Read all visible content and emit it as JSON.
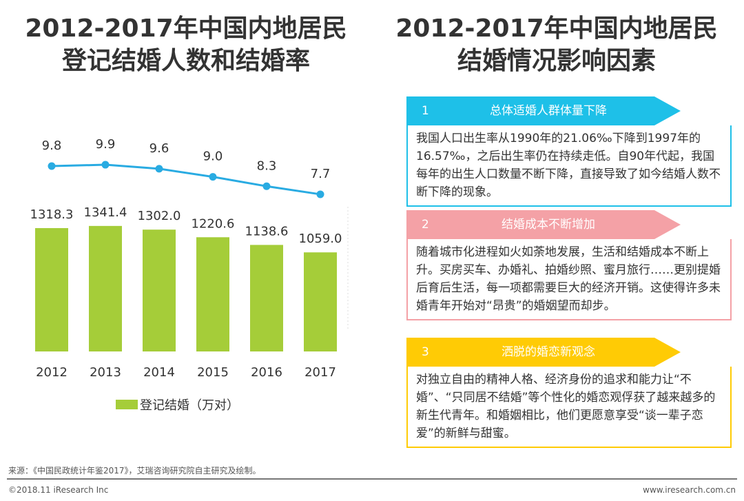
{
  "left_title": [
    "2012-2017年中国内地居民",
    "登记结婚人数和结婚率"
  ],
  "right_title": [
    "2012-2017年中国内地居民",
    "结婚情况影响因素"
  ],
  "chart_data": {
    "type": "bar+line",
    "categories": [
      "2012",
      "2013",
      "2014",
      "2015",
      "2016",
      "2017"
    ],
    "series": [
      {
        "name": "登记结婚（万对）",
        "type": "bar",
        "values": [
          1318.3,
          1341.4,
          1302.0,
          1220.6,
          1138.6,
          1059.0
        ],
        "color": "#a5cd39"
      },
      {
        "name": "结婚率",
        "type": "line",
        "values": [
          9.8,
          9.9,
          9.6,
          9.0,
          8.3,
          7.7
        ],
        "color": "#29abe2"
      }
    ],
    "bar_labels": [
      "1318.3",
      "1341.4",
      "1302.0",
      "1220.6",
      "1138.6",
      "1059.0"
    ],
    "line_labels": [
      "9.8",
      "9.9",
      "9.6",
      "9.0",
      "8.3",
      "7.7"
    ],
    "legend": "登记结婚（万对）",
    "legend_position": "bottom"
  },
  "factors": [
    {
      "num": "1",
      "title": "总体适婚人群体量下降",
      "color": "#1ec0e8",
      "text": "我国人口出生率从1990年的21.06‰下降到1997年的16.57‰，之后出生率仍在持续走低。自90年代起，我国每年的出生人口数量不断下降，直接导致了如今结婚人数不断下降的现象。"
    },
    {
      "num": "2",
      "title": "结婚成本不断增加",
      "color": "#f4a1a6",
      "text": "随着城市化进程如火如荼地发展，生活和结婚成本不断上升。买房买车、办婚礼、拍婚纱照、蜜月旅行……更别提婚后育后生活，每一项都需要巨大的经济开销。这使得许多未婚青年开始对“昂贵”的婚姻望而却步。"
    },
    {
      "num": "3",
      "title": "洒脱的婚恋新观念",
      "color": "#ffcb05",
      "text": "对独立自由的精神人格、经济身份的追求和能力让“不婚”、“只同居不结婚”等个性化的婚恋观俘获了越来越多的新生代青年。和婚姻相比，他们更愿意享受“谈一辈子恋爱”的新鲜与甜蜜。"
    }
  ],
  "footer": {
    "source": "来源：《中国民政统计年鉴2017》，艾瑞咨询研究院自主研究及绘制。",
    "copyright": "©2018.11 iResearch Inc",
    "url": "www.iresearch.com.cn"
  }
}
